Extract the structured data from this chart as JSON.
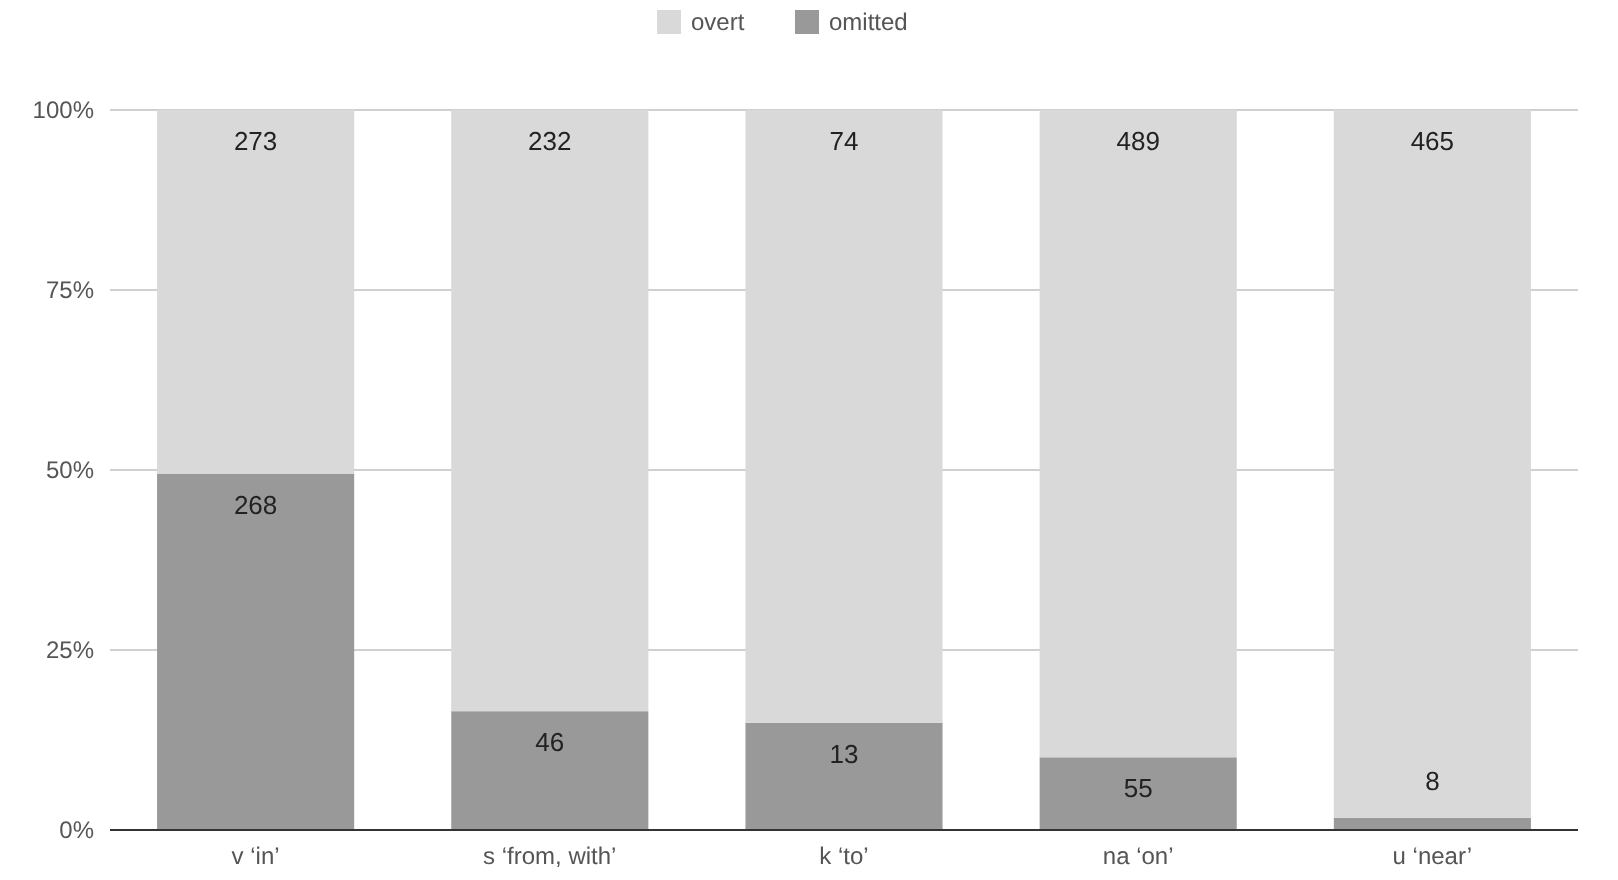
{
  "chart_data": {
    "type": "bar",
    "stacked": true,
    "categories": [
      "v ‘in’",
      "s ‘from, with’",
      "k ‘to’",
      "na ‘on’",
      "u ‘near’"
    ],
    "series": [
      {
        "name": "omitted",
        "color": "#999999",
        "values": [
          49.5,
          16.5,
          14.9,
          10.1,
          1.7
        ]
      },
      {
        "name": "overt",
        "color": "#d9d9d9",
        "values": [
          50.5,
          83.5,
          85.1,
          89.9,
          98.3
        ]
      }
    ],
    "annotations": [
      "268",
      "46",
      "13",
      "55",
      "8",
      "273",
      "232",
      "74",
      "489",
      "465"
    ],
    "ylim": [
      0,
      100
    ],
    "yticks": [
      {
        "value": 0,
        "label": "0%"
      },
      {
        "value": 25,
        "label": "25%"
      },
      {
        "value": 50,
        "label": "50%"
      },
      {
        "value": 75,
        "label": "75%"
      },
      {
        "value": 100,
        "label": "100%"
      }
    ],
    "grid": "y",
    "legend": "top"
  }
}
